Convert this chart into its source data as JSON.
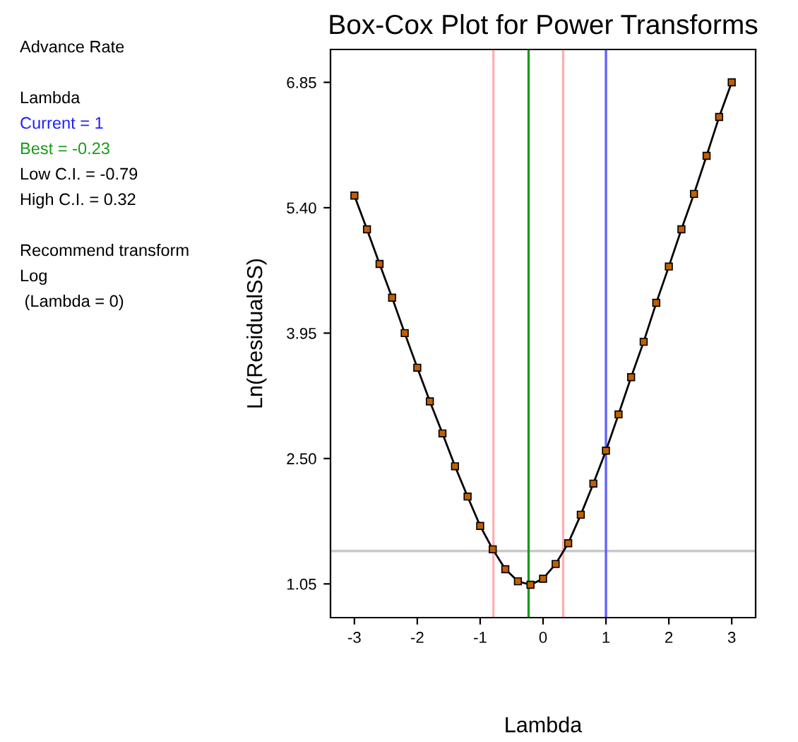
{
  "chart_data": {
    "type": "line",
    "title": "Box-Cox Plot for Power Transforms",
    "xlabel": "Lambda",
    "ylabel": "Ln(ResidualSS)",
    "annotations": [
      "Advance Rate",
      "Lambda",
      "Current = 1",
      "Best = -0.23",
      "Low C.I. = -0.79",
      "High C.I. = 0.32",
      "Recommend transform",
      "Log",
      " (Lambda = 0)"
    ],
    "x": [
      -3,
      -2.8,
      -2.6,
      -2.4,
      -2.2,
      -2,
      -1.8,
      -1.6,
      -1.4,
      -1.2,
      -1,
      -0.8,
      -0.6,
      -0.4,
      -0.2,
      0,
      0.2,
      0.4,
      0.6,
      0.8,
      1,
      1.2,
      1.4,
      1.6,
      1.8,
      2,
      2.2,
      2.4,
      2.6,
      2.8,
      3
    ],
    "series": [
      {
        "color": "#000000",
        "values": [
          5.54,
          5.15,
          4.75,
          4.36,
          3.95,
          3.55,
          3.16,
          2.79,
          2.41,
          2.06,
          1.72,
          1.45,
          1.22,
          1.08,
          1.04,
          1.11,
          1.28,
          1.52,
          1.85,
          2.21,
          2.59,
          3.01,
          3.44,
          3.85,
          4.3,
          4.72,
          5.15,
          5.56,
          6.0,
          6.45,
          6.85
        ]
      }
    ],
    "marker": "square",
    "line_style": "solid",
    "grid": false,
    "xlim": [
      -3.38,
      3.38
    ],
    "ylim": [
      0.66,
      7.23
    ],
    "xticks": [
      -3,
      -2,
      -1,
      0,
      1,
      2,
      3
    ],
    "yticks": [
      1.05,
      {
        "value": 2.5,
        "label": "2.50"
      },
      3.95,
      {
        "value": 5.4,
        "label": "5.40"
      },
      6.85
    ],
    "ref_lines": [
      {
        "axis": "y",
        "value": 1.43,
        "color": "#c8c8c8"
      },
      {
        "axis": "x",
        "value": -0.79,
        "color": "#ffb0b0"
      },
      {
        "axis": "x",
        "value": 0.32,
        "color": "#ffb0b0"
      },
      {
        "axis": "x",
        "value": -0.23,
        "color": "#1a9a1a"
      },
      {
        "axis": "x",
        "value": 1,
        "color": "#6060ff"
      }
    ]
  }
}
